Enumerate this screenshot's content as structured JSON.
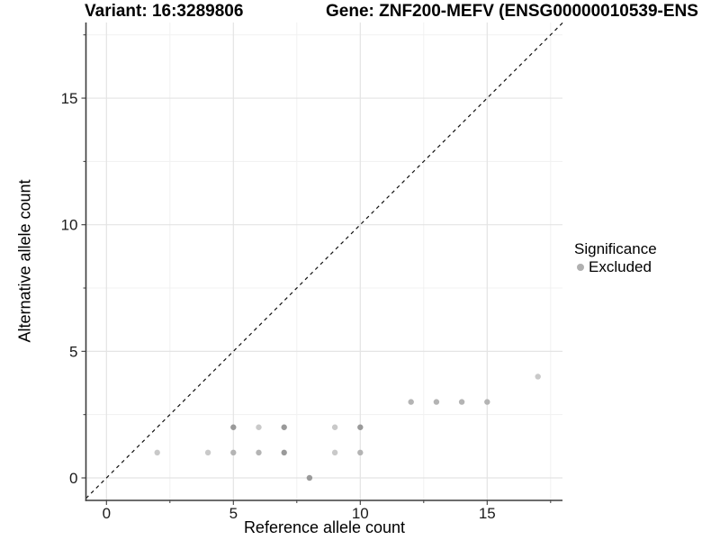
{
  "header": {
    "variant_title": "Variant: 16:3289806",
    "gene_title": "Gene: ZNF200-MEFV (ENSG00000010539-ENS"
  },
  "legend": {
    "title": "Significance",
    "items": [
      {
        "label": "Excluded",
        "color": "#b0b0b0"
      }
    ]
  },
  "chart_data": {
    "type": "scatter",
    "title": "Variant: 16:3289806   Gene: ZNF200-MEFV (ENSG00000010539-ENS",
    "xlabel": "Reference allele count",
    "ylabel": "Alternative allele count",
    "xlim": [
      -0.9,
      18
    ],
    "ylim": [
      -0.9,
      18
    ],
    "x_major_ticks": [
      0,
      5,
      10,
      15
    ],
    "x_minor_ticks": [
      2.5,
      7.5,
      12.5,
      17.5
    ],
    "y_major_ticks": [
      0,
      5,
      10,
      15
    ],
    "y_minor_ticks": [
      2.5,
      7.5,
      12.5,
      17.5
    ],
    "grid": "major+minor",
    "legend_position": "right",
    "identity_line": {
      "equation": "y = x",
      "style": "dashed",
      "color": "#111111"
    },
    "point_colors": {
      "light": "#c9c9c9",
      "mid": "#b4b4b4",
      "dark": "#9a9a9a"
    },
    "series": [
      {
        "name": "Excluded",
        "points": [
          {
            "x": 8,
            "y": 0,
            "shade": "dark"
          },
          {
            "x": 2,
            "y": 1,
            "shade": "light"
          },
          {
            "x": 4,
            "y": 1,
            "shade": "light"
          },
          {
            "x": 5,
            "y": 1,
            "shade": "mid"
          },
          {
            "x": 6,
            "y": 1,
            "shade": "mid"
          },
          {
            "x": 7,
            "y": 1,
            "shade": "dark"
          },
          {
            "x": 9,
            "y": 1,
            "shade": "light"
          },
          {
            "x": 10,
            "y": 1,
            "shade": "mid"
          },
          {
            "x": 5,
            "y": 2,
            "shade": "dark"
          },
          {
            "x": 6,
            "y": 2,
            "shade": "light"
          },
          {
            "x": 7,
            "y": 2,
            "shade": "dark"
          },
          {
            "x": 9,
            "y": 2,
            "shade": "light"
          },
          {
            "x": 10,
            "y": 2,
            "shade": "dark"
          },
          {
            "x": 12,
            "y": 3,
            "shade": "mid"
          },
          {
            "x": 13,
            "y": 3,
            "shade": "mid"
          },
          {
            "x": 14,
            "y": 3,
            "shade": "mid"
          },
          {
            "x": 15,
            "y": 3,
            "shade": "mid"
          },
          {
            "x": 17,
            "y": 4,
            "shade": "light"
          }
        ]
      }
    ],
    "colors": {
      "grid_major": "#e4e4e4",
      "grid_minor": "#f1f1f1",
      "axis_line": "#3c3c3c",
      "tick_label": "#1a1a1a"
    }
  }
}
